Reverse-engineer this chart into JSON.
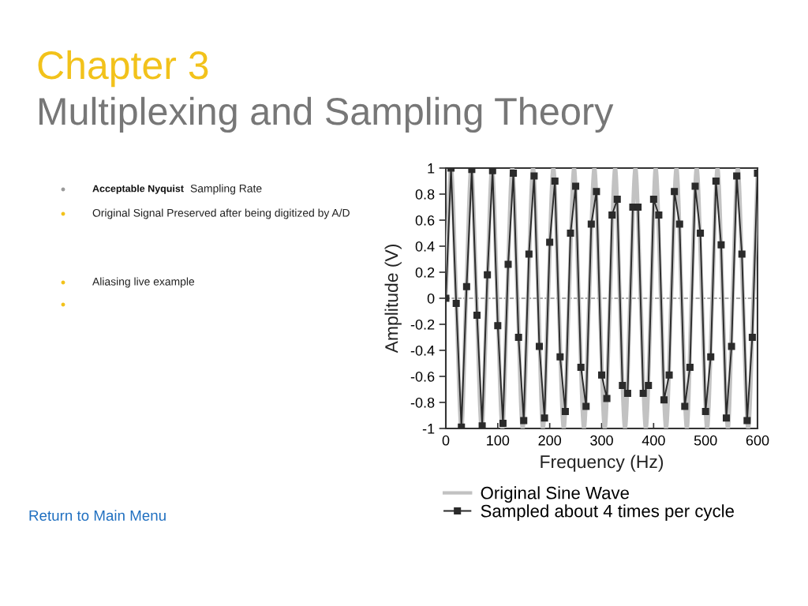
{
  "chart_data": {
    "type": "line",
    "title": "Chapter 3",
    "subtitle": "Multiplexing and Sampling Theory",
    "xlabel": "Frequency (Hz)",
    "ylabel": "Amplitude (V)",
    "annotations": [
      "Acceptable Nyquist",
      "Sampling Rate",
      "Original Signal Preserved after being digitized by A/D",
      "Aliasing live example",
      "Return to Main Menu"
    ],
    "xlim": [
      0,
      600
    ],
    "ylim": [
      -1,
      1
    ],
    "xticks": [
      0,
      100,
      200,
      300,
      400,
      500,
      600
    ],
    "yticks": [
      -1,
      -0.8,
      -0.6,
      -0.4,
      -0.2,
      0,
      0.2,
      0.4,
      0.6,
      0.8,
      1
    ],
    "grid": false,
    "legend": "bottom",
    "ref_lines": [
      {
        "axis": "y",
        "value": 0,
        "color": "#8c8c8c",
        "line_style": "dashed"
      }
    ],
    "series": [
      {
        "name": "Original Sine Wave",
        "color": "#c2c2c2",
        "marker": "none",
        "line_style": "solid",
        "x": [
          0,
          10,
          20,
          30,
          39,
          49,
          59,
          69,
          79,
          89,
          99,
          109,
          118,
          128,
          138,
          148,
          158,
          168,
          178,
          187,
          197,
          207,
          217,
          227,
          237,
          247,
          256,
          266,
          276,
          286,
          296,
          306,
          316,
          326,
          335,
          345,
          355,
          365,
          375,
          385,
          395,
          404,
          414,
          424,
          434,
          444,
          454,
          464,
          473,
          483,
          493,
          503,
          513,
          523,
          533,
          543,
          552,
          562,
          572,
          582,
          592,
          600
        ],
        "values": [
          0,
          1,
          0,
          -1,
          0,
          1,
          0,
          -1,
          0,
          1,
          0,
          -1,
          0,
          1,
          0,
          -1,
          0,
          1,
          0,
          -1,
          0,
          1,
          0,
          -1,
          0,
          1,
          0,
          -1,
          0,
          1,
          0,
          -1,
          0,
          1,
          0,
          -1,
          0,
          1,
          0,
          -1,
          0,
          1,
          0,
          -1,
          0,
          1,
          0,
          -1,
          0,
          1,
          0,
          -1,
          0,
          1,
          0,
          -1,
          0,
          1,
          0,
          -1,
          0,
          0.96
        ]
      },
      {
        "name": "Sampled about 4 times per cycle",
        "color": "#2b2b2b",
        "marker": "square",
        "line_style": "solid",
        "x": [
          0,
          10,
          20,
          30,
          40,
          50,
          60,
          70,
          80,
          90,
          100,
          110,
          120,
          130,
          140,
          150,
          160,
          170,
          180,
          190,
          200,
          210,
          220,
          230,
          240,
          250,
          260,
          270,
          280,
          290,
          300,
          310,
          320,
          330,
          340,
          350,
          360,
          370,
          380,
          390,
          400,
          410,
          420,
          430,
          440,
          450,
          460,
          470,
          480,
          490,
          500,
          510,
          520,
          530,
          540,
          550,
          560,
          570,
          580,
          590,
          600
        ],
        "values": [
          0,
          1,
          -0.04,
          -0.99,
          0.09,
          0.99,
          -0.13,
          -0.98,
          0.18,
          0.98,
          -0.21,
          -0.96,
          0.26,
          0.96,
          -0.3,
          -0.94,
          0.34,
          0.94,
          -0.37,
          -0.92,
          0.43,
          0.9,
          -0.45,
          -0.87,
          0.5,
          0.86,
          -0.53,
          -0.83,
          0.57,
          0.82,
          -0.59,
          -0.77,
          0.64,
          0.76,
          -0.67,
          -0.73,
          0.7,
          0.7,
          -0.73,
          -0.67,
          0.76,
          0.64,
          -0.78,
          -0.59,
          0.82,
          0.57,
          -0.83,
          -0.53,
          0.86,
          0.5,
          -0.87,
          -0.45,
          0.9,
          0.41,
          -0.92,
          -0.37,
          0.94,
          0.34,
          -0.94,
          -0.3,
          0.96
        ]
      }
    ]
  }
}
